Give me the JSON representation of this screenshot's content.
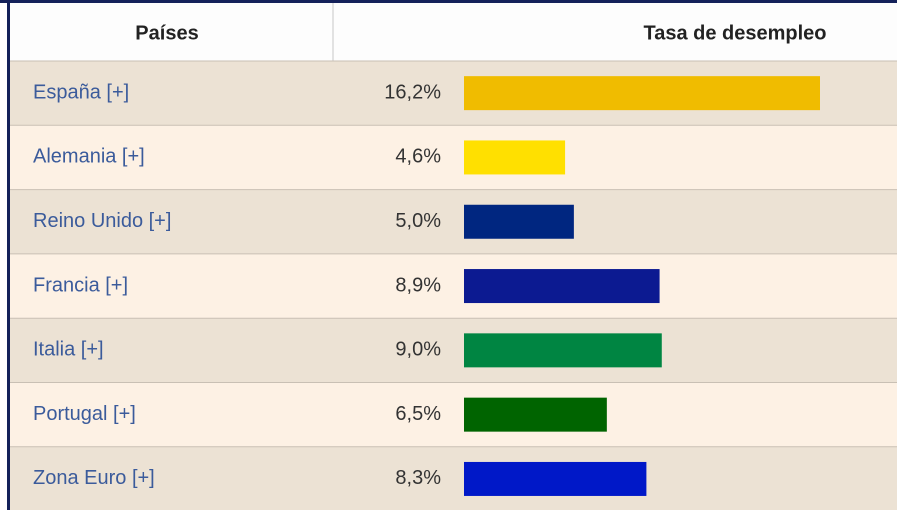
{
  "chart_data": {
    "type": "bar",
    "column_headers": [
      "Países",
      "Tasa de desempleo"
    ],
    "categories": [
      "España [+]",
      "Alemania [+]",
      "Reino Unido [+]",
      "Francia [+]",
      "Italia [+]",
      "Portugal [+]",
      "Zona Euro [+]"
    ],
    "values": [
      16.2,
      4.6,
      5.0,
      8.9,
      9.0,
      6.5,
      8.3
    ],
    "value_labels": [
      "16,2%",
      "4,6%",
      "5,0%",
      "8,9%",
      "9,0%",
      "6,5%",
      "8,3%"
    ],
    "colors": [
      "#f0bc00",
      "#ffe000",
      "#002680",
      "#0c1a91",
      "#008542",
      "#006400",
      "#0018c8"
    ]
  }
}
